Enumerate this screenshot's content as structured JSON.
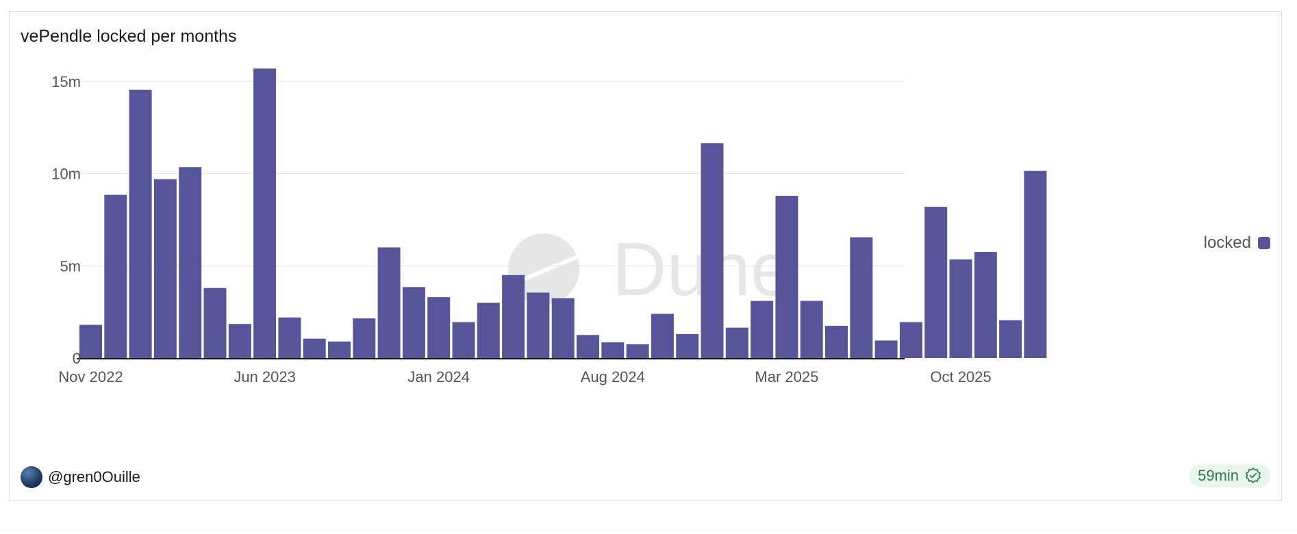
{
  "chart_data": {
    "type": "bar",
    "title": "vePendle locked per months",
    "xlabel": "",
    "ylabel": "",
    "ylim": [
      0,
      15000000
    ],
    "y_ticks": [
      {
        "value": 0,
        "label": "0"
      },
      {
        "value": 5000000,
        "label": "5m"
      },
      {
        "value": 10000000,
        "label": "10m"
      },
      {
        "value": 15000000,
        "label": "15m"
      }
    ],
    "categories": [
      "Nov 2022",
      "Dec 2022",
      "Jan 2023",
      "Feb 2023",
      "Mar 2023",
      "Apr 2023",
      "May 2023",
      "Jun 2023",
      "Jul 2023",
      "Aug 2023",
      "Sep 2023",
      "Oct 2023",
      "Nov 2023",
      "Dec 2023",
      "Jan 2024",
      "Feb 2024",
      "Mar 2024",
      "Apr 2024",
      "May 2024",
      "Jun 2024",
      "Jul 2024",
      "Aug 2024",
      "Sep 2024",
      "Oct 2024",
      "Nov 2024",
      "Dec 2024",
      "Jan 2025",
      "Feb 2025",
      "Mar 2025",
      "Apr 2025",
      "May 2025",
      "Jun 2025",
      "Jul 2025",
      "Aug 2025",
      "Sep 2025",
      "Oct 2025",
      "Nov 2025",
      "Dec 2025",
      "Jan 2026"
    ],
    "x_tick_labels": [
      {
        "category": "Nov 2022",
        "label": "Nov 2022"
      },
      {
        "category": "Jun 2023",
        "label": "Jun 2023"
      },
      {
        "category": "Jan 2024",
        "label": "Jan 2024"
      },
      {
        "category": "Aug 2024",
        "label": "Aug 2024"
      },
      {
        "category": "Mar 2025",
        "label": "Mar 2025"
      },
      {
        "category": "Oct 2025",
        "label": "Oct 2025"
      }
    ],
    "series": [
      {
        "name": "locked",
        "color": "#56559a",
        "values": [
          1800000,
          8850000,
          14550000,
          9700000,
          10350000,
          3800000,
          1850000,
          15700000,
          2200000,
          1050000,
          900000,
          2150000,
          6000000,
          3850000,
          3300000,
          1950000,
          3000000,
          4500000,
          3550000,
          3250000,
          1250000,
          850000,
          750000,
          2400000,
          1300000,
          11650000,
          1650000,
          3100000,
          8800000,
          3100000,
          1750000,
          6550000,
          950000,
          1950000,
          8200000,
          5350000,
          5750000,
          2050000,
          10150000
        ]
      }
    ],
    "legend_position": "right",
    "grid": true,
    "watermark": "Dune"
  },
  "footer": {
    "author": "@gren0Ouille",
    "refresh": "59min"
  },
  "icons": {
    "avatar": "user-avatar",
    "refresh": "verified-badge-icon"
  }
}
